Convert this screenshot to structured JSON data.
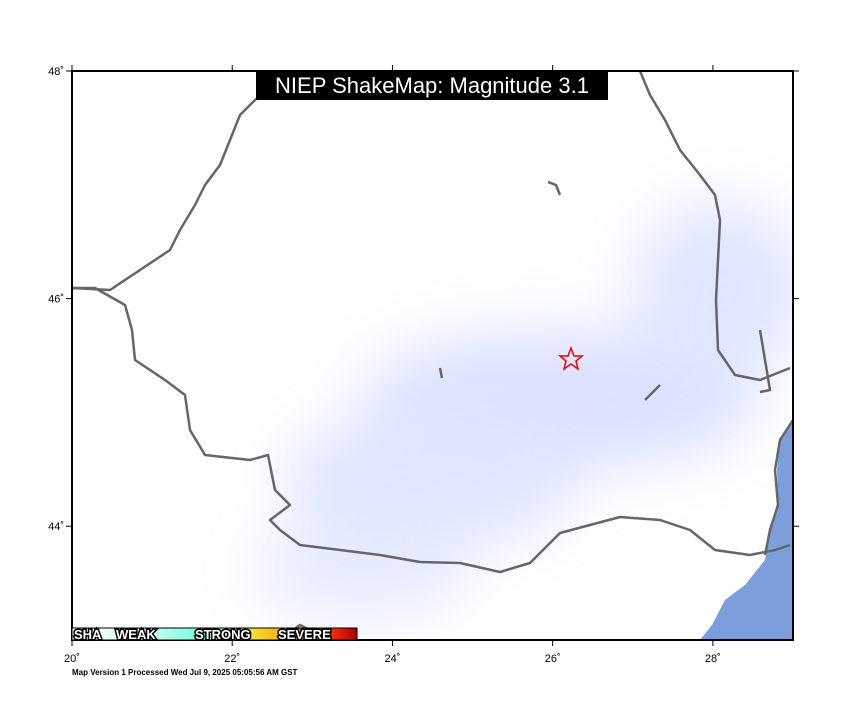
{
  "map": {
    "title": "NIEP ShakeMap: Magnitude 3.1",
    "xlim": [
      20,
      29
    ],
    "ylim": [
      43,
      48
    ],
    "lon_ticks": [
      {
        "value": 20,
        "label": "20˚"
      },
      {
        "value": 22,
        "label": "22˚"
      },
      {
        "value": 24,
        "label": "24˚"
      },
      {
        "value": 26,
        "label": "26˚"
      },
      {
        "value": 28,
        "label": "28˚"
      }
    ],
    "lat_ticks": [
      {
        "value": 44,
        "label": "44˚"
      },
      {
        "value": 46,
        "label": "46˚"
      },
      {
        "value": 48,
        "label": "48˚"
      }
    ],
    "legend": [
      "SHA",
      "WEAK",
      "STRONG",
      "SEVERE"
    ],
    "footer": "Map Version 1 Processed Wed Jul  9, 2025 05:05:56 AM GST"
  }
}
